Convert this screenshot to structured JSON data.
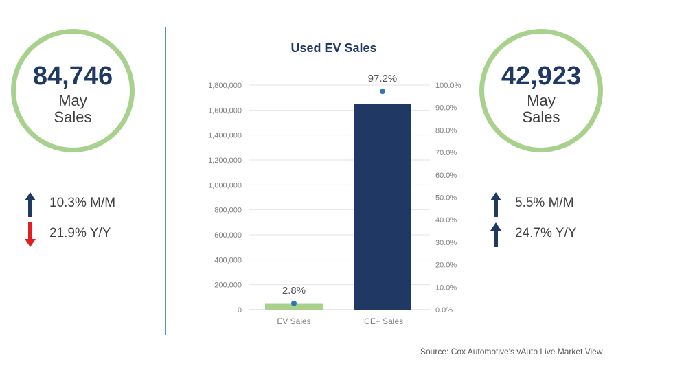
{
  "left_stat": {
    "number": "84,746",
    "line1": "May",
    "line2": "Sales",
    "changes": [
      {
        "direction": "up",
        "color": "#1f3864",
        "text": "10.3% M/M"
      },
      {
        "direction": "down",
        "color": "#e02020",
        "text": "21.9% Y/Y"
      }
    ]
  },
  "right_stat": {
    "number": "42,923",
    "line1": "May",
    "line2": "Sales",
    "changes": [
      {
        "direction": "up",
        "color": "#1f3864",
        "text": "5.5% M/M"
      },
      {
        "direction": "up",
        "color": "#1f3864",
        "text": "24.7% Y/Y"
      }
    ]
  },
  "colors": {
    "circle_ring": "#a9d18e",
    "ev_bar": "#a9d18e",
    "ice_bar": "#1f3864",
    "share_point": "#2e75b6",
    "divider": "#5b8db8"
  },
  "chart_data": {
    "type": "bar",
    "title": "Used EV Sales",
    "categories": [
      "EV Sales",
      "ICE+ Sales"
    ],
    "series": [
      {
        "values": [
          46500,
          1650000
        ],
        "axis": "left"
      },
      {
        "values": [
          2.8,
          97.2
        ],
        "axis": "right",
        "display": "point",
        "labels": [
          "2.8%",
          "97.2%"
        ]
      }
    ],
    "ylim": [
      0,
      1800000
    ],
    "y_ticks": [
      "0",
      "200,000",
      "400,000",
      "600,000",
      "800,000",
      "1,000,000",
      "1,200,000",
      "1,400,000",
      "1,600,000",
      "1,800,000"
    ],
    "y2lim": [
      0,
      100
    ],
    "y2_ticks": [
      "0.0%",
      "10.0%",
      "20.0%",
      "30.0%",
      "40.0%",
      "50.0%",
      "60.0%",
      "70.0%",
      "80.0%",
      "90.0%",
      "100.0%"
    ],
    "grid": true,
    "xlabel": "",
    "ylabel": ""
  },
  "source": "Source: Cox Automotive's vAuto Live Market View"
}
